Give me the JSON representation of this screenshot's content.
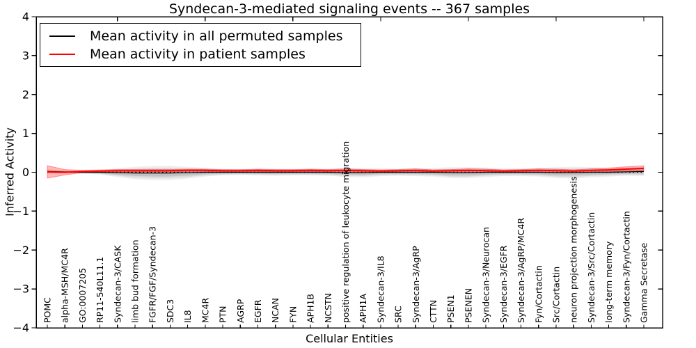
{
  "figure": {
    "title": "Syndecan-3-mediated signaling events -- 367 samples",
    "xlabel": "Cellular Entities",
    "ylabel": "Inferred Activity",
    "background": "#ffffff",
    "frame_color": "#000000"
  },
  "legend": {
    "position": "upper left",
    "entries": [
      {
        "label": "Mean activity in all permuted samples",
        "color": "#000000"
      },
      {
        "label": "Mean activity in patient samples",
        "color": "#ff0000"
      }
    ]
  },
  "chart_data": {
    "type": "line",
    "title": "Syndecan-3-mediated signaling events -- 367 samples",
    "xlabel": "Cellular Entities",
    "ylabel": "Inferred Activity",
    "ylim": [
      -4,
      4
    ],
    "ytick_values": [
      4,
      3,
      2,
      1,
      0,
      -1,
      -2,
      -3,
      -4
    ],
    "ytick_labels": [
      "4",
      "3",
      "2",
      "1",
      "0",
      "−1",
      "−2",
      "−3",
      "−4"
    ],
    "grid": false,
    "legend_position": "upper left",
    "zero_line": {
      "style": "dotted",
      "color": "#000000",
      "y": 0
    },
    "categories": [
      "POMC",
      "alpha-MSH/MC4R",
      "GO:0007205",
      "RP11-540L11.1",
      "Syndecan-3/CASK",
      "limb bud formation",
      "FGFR/FGF/Syndecan-3",
      "SDC3",
      "IL8",
      "MC4R",
      "PTN",
      "AGRP",
      "EGFR",
      "NCAN",
      "FYN",
      "APH1B",
      "NCSTN",
      "positive regulation of leukocyte migration",
      "APH1A",
      "Syndecan-3/IL8",
      "SRC",
      "Syndecan-3/AgRP",
      "CTTN",
      "PSEN1",
      "PSENEN",
      "Syndecan-3/Neurocan",
      "Syndecan-3/EGFR",
      "Syndecan-3/AgRP/MC4R",
      "Fyn/Cortactin",
      "Src/Cortactin",
      "neuron projection morphogenesis",
      "Syndecan-3/Src/Cortactin",
      "long-term memory",
      "Syndecan-3/Fyn/Cortactin",
      "Gamma Secretase"
    ],
    "series": [
      {
        "name": "Mean activity in all permuted samples",
        "color": "#000000",
        "line_width": 1.2,
        "band_color": "#888888",
        "values": [
          0.02,
          0.01,
          0,
          0,
          -0.01,
          -0.02,
          -0.02,
          -0.02,
          -0.01,
          0,
          0,
          0,
          0,
          0,
          0,
          0,
          0,
          -0.01,
          -0.01,
          0,
          0,
          0,
          0,
          -0.01,
          -0.01,
          0,
          0,
          0,
          0,
          -0.01,
          -0.01,
          0,
          0,
          0.01,
          0.02
        ],
        "band_halfwidth": [
          0.05,
          0.04,
          0.04,
          0.06,
          0.11,
          0.16,
          0.18,
          0.18,
          0.15,
          0.11,
          0.08,
          0.07,
          0.08,
          0.09,
          0.08,
          0.08,
          0.09,
          0.11,
          0.12,
          0.1,
          0.09,
          0.1,
          0.11,
          0.14,
          0.14,
          0.12,
          0.1,
          0.1,
          0.11,
          0.14,
          0.15,
          0.13,
          0.11,
          0.1,
          0.12
        ]
      },
      {
        "name": "Mean activity in patient samples",
        "color": "#ff0000",
        "line_width": 2,
        "band_color": "#ff0000",
        "values": [
          0.01,
          0,
          0.02,
          0.03,
          0.04,
          0.04,
          0.04,
          0.04,
          0.05,
          0.05,
          0.04,
          0.04,
          0.05,
          0.04,
          0.04,
          0.05,
          0.04,
          0.05,
          0.04,
          0.03,
          0.04,
          0.05,
          0.03,
          0.04,
          0.05,
          0.04,
          0.03,
          0.04,
          0.05,
          0.04,
          0.03,
          0.05,
          0.06,
          0.08,
          0.1
        ],
        "band_halfwidth": [
          0.16,
          0.07,
          0.03,
          0.03,
          0.03,
          0.03,
          0.03,
          0.03,
          0.03,
          0.03,
          0.03,
          0.03,
          0.03,
          0.03,
          0.03,
          0.03,
          0.03,
          0.04,
          0.03,
          0.03,
          0.03,
          0.04,
          0.03,
          0.03,
          0.04,
          0.04,
          0.03,
          0.03,
          0.04,
          0.04,
          0.03,
          0.04,
          0.05,
          0.06,
          0.07
        ]
      }
    ]
  }
}
